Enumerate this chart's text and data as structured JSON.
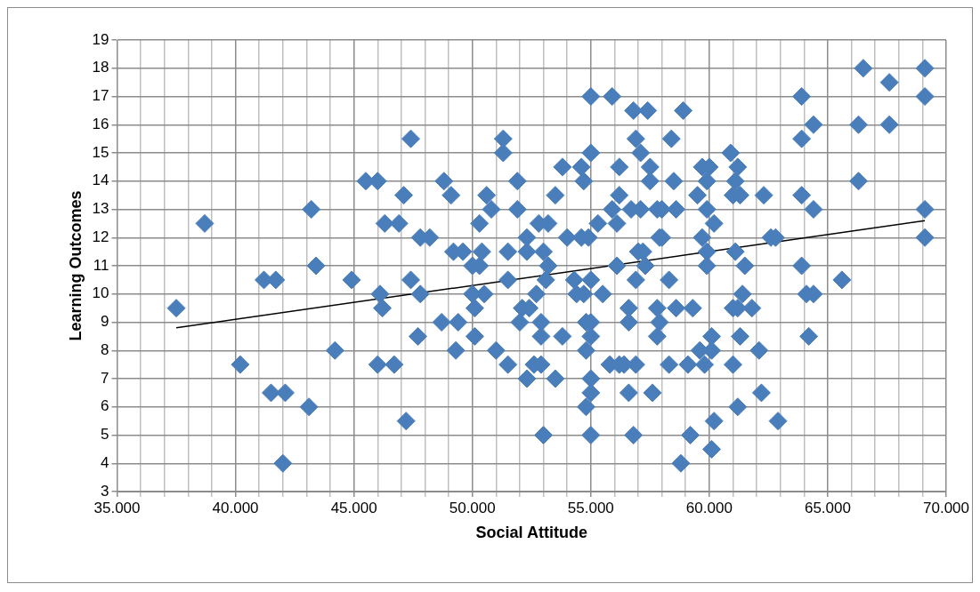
{
  "chart_data": {
    "type": "scatter",
    "xlabel": "Social Attitude",
    "ylabel": "Learning Outcomes",
    "xlim": [
      35,
      70
    ],
    "xticks": [
      {
        "value": 35,
        "label": "35.000"
      },
      {
        "value": 36,
        "label": null
      },
      {
        "value": 37,
        "label": null
      },
      {
        "value": 38,
        "label": null
      },
      {
        "value": 39,
        "label": null
      },
      {
        "value": 40,
        "label": "40.000"
      },
      {
        "value": 41,
        "label": null
      },
      {
        "value": 42,
        "label": null
      },
      {
        "value": 43,
        "label": null
      },
      {
        "value": 44,
        "label": null
      },
      {
        "value": 45,
        "label": "45.000"
      },
      {
        "value": 46,
        "label": null
      },
      {
        "value": 47,
        "label": null
      },
      {
        "value": 48,
        "label": null
      },
      {
        "value": 49,
        "label": null
      },
      {
        "value": 50,
        "label": "50.000"
      },
      {
        "value": 51,
        "label": null
      },
      {
        "value": 52,
        "label": null
      },
      {
        "value": 53,
        "label": null
      },
      {
        "value": 54,
        "label": null
      },
      {
        "value": 55,
        "label": "55.000"
      },
      {
        "value": 56,
        "label": null
      },
      {
        "value": 57,
        "label": null
      },
      {
        "value": 58,
        "label": null
      },
      {
        "value": 59,
        "label": null
      },
      {
        "value": 60,
        "label": "60.000"
      },
      {
        "value": 61,
        "label": null
      },
      {
        "value": 62,
        "label": null
      },
      {
        "value": 63,
        "label": null
      },
      {
        "value": 64,
        "label": null
      },
      {
        "value": 65,
        "label": "65.000"
      },
      {
        "value": 66,
        "label": null
      },
      {
        "value": 67,
        "label": null
      },
      {
        "value": 68,
        "label": null
      },
      {
        "value": 69,
        "label": null
      },
      {
        "value": 70,
        "label": "70.000"
      }
    ],
    "ylim": [
      3,
      19
    ],
    "yticks": [
      3,
      4,
      5,
      6,
      7,
      8,
      9,
      10,
      11,
      12,
      13,
      14,
      15,
      16,
      17,
      18,
      19
    ],
    "grid": true,
    "legend": false,
    "series": [
      {
        "type": "scatter",
        "marker": "diamond",
        "color": "#4a7ebb",
        "x": [
          37.5,
          38.7,
          40.2,
          41.2,
          41.7,
          41.5,
          42.1,
          42.0,
          43.1,
          43.2,
          43.4,
          44.2,
          44.9,
          45.5,
          46.0,
          46.1,
          46.2,
          46.3,
          46.0,
          46.7,
          46.9,
          47.1,
          47.2,
          47.4,
          47.4,
          47.7,
          47.8,
          47.8,
          48.2,
          48.7,
          48.8,
          49.1,
          49.2,
          49.3,
          49.4,
          49.6,
          50.0,
          50.0,
          50.1,
          50.1,
          50.3,
          50.3,
          50.4,
          50.5,
          50.6,
          50.8,
          51.0,
          51.3,
          51.3,
          51.5,
          51.5,
          51.5,
          51.9,
          51.9,
          52.0,
          52.1,
          52.3,
          52.3,
          52.3,
          52.4,
          52.6,
          52.7,
          52.8,
          52.9,
          52.9,
          52.9,
          53.0,
          53.0,
          53.1,
          53.2,
          53.2,
          53.5,
          53.5,
          53.8,
          53.8,
          54.0,
          54.3,
          54.4,
          54.6,
          54.6,
          54.7,
          54.7,
          54.8,
          54.8,
          54.8,
          54.9,
          55.0,
          55.0,
          55.0,
          55.0,
          55.0,
          55.0,
          55.0,
          55.0,
          55.3,
          55.5,
          55.8,
          55.9,
          55.9,
          56.1,
          56.1,
          56.2,
          56.2,
          56.2,
          56.4,
          56.6,
          56.6,
          56.6,
          56.7,
          56.8,
          56.8,
          56.9,
          56.9,
          56.9,
          57.0,
          57.1,
          57.1,
          57.2,
          57.3,
          57.4,
          57.5,
          57.5,
          57.6,
          57.8,
          57.8,
          57.8,
          57.9,
          57.9,
          58.0,
          58.0,
          58.3,
          58.3,
          58.4,
          58.5,
          58.6,
          58.6,
          58.8,
          58.9,
          59.1,
          59.3,
          59.2,
          59.5,
          59.6,
          59.7,
          59.7,
          59.8,
          59.9,
          59.9,
          59.9,
          59.9,
          60.0,
          60.1,
          60.1,
          60.2,
          60.2,
          60.1,
          60.9,
          61.0,
          61.0,
          61.0,
          61.1,
          61.1,
          61.2,
          61.2,
          61.2,
          61.3,
          61.3,
          61.4,
          61.5,
          61.8,
          62.1,
          62.2,
          62.3,
          62.6,
          62.8,
          62.9,
          63.9,
          63.9,
          63.9,
          63.9,
          64.1,
          64.2,
          64.4,
          64.4,
          64.4,
          65.6,
          66.3,
          66.3,
          66.5,
          67.6,
          67.6,
          69.1,
          69.1,
          69.1,
          69.1
        ],
        "values": [
          9.5,
          12.5,
          7.5,
          10.5,
          10.5,
          6.5,
          6.5,
          4.0,
          6.0,
          13.0,
          11.0,
          8.0,
          10.5,
          14.0,
          14.0,
          10.0,
          9.5,
          12.5,
          7.5,
          7.5,
          12.5,
          13.5,
          5.5,
          15.5,
          10.5,
          8.5,
          10.0,
          12.0,
          12.0,
          9.0,
          14.0,
          13.5,
          11.5,
          8.0,
          9.0,
          11.5,
          11.0,
          10.0,
          9.5,
          8.5,
          12.5,
          11.0,
          11.5,
          10.0,
          13.5,
          13.0,
          8.0,
          15.5,
          15.0,
          11.5,
          10.5,
          7.5,
          14.0,
          13.0,
          9.0,
          9.5,
          12.0,
          11.5,
          7.0,
          9.5,
          7.5,
          10.0,
          12.5,
          9.0,
          8.5,
          7.5,
          5.0,
          11.5,
          10.5,
          12.5,
          11.0,
          13.5,
          7.0,
          8.5,
          14.5,
          12.0,
          10.5,
          10.0,
          14.5,
          12.0,
          14.0,
          10.0,
          9.0,
          8.0,
          6.0,
          12.0,
          17.0,
          15.0,
          10.5,
          9.0,
          8.5,
          7.0,
          6.5,
          5.0,
          12.5,
          10.0,
          7.5,
          17.0,
          13.0,
          12.5,
          11.0,
          14.5,
          13.5,
          7.5,
          7.5,
          9.5,
          9.0,
          6.5,
          13.0,
          5.0,
          16.5,
          15.5,
          10.5,
          7.5,
          11.5,
          15.0,
          13.0,
          11.5,
          11.0,
          16.5,
          14.5,
          14.0,
          6.5,
          13.0,
          9.5,
          8.5,
          12.0,
          9.0,
          13.0,
          12.0,
          10.5,
          7.5,
          15.5,
          14.0,
          13.0,
          9.5,
          4.0,
          16.5,
          7.5,
          9.5,
          5.0,
          13.5,
          8.0,
          12.0,
          14.5,
          7.5,
          14.0,
          13.0,
          11.5,
          11.0,
          14.5,
          8.0,
          8.5,
          12.5,
          5.5,
          4.5,
          15.0,
          13.5,
          9.5,
          7.5,
          11.5,
          14.0,
          14.5,
          9.5,
          6.0,
          13.5,
          8.5,
          10.0,
          11.0,
          9.5,
          8.0,
          6.5,
          13.5,
          12.0,
          12.0,
          5.5,
          17.0,
          15.5,
          13.5,
          11.0,
          10.0,
          8.5,
          16.0,
          13.0,
          10.0,
          10.5,
          16.0,
          14.0,
          18.0,
          17.5,
          16.0,
          18.0,
          17.0,
          13.0,
          12.0
        ]
      },
      {
        "type": "line",
        "color": "#000000",
        "x": [
          37.5,
          69.1
        ],
        "values": [
          8.8,
          12.6
        ]
      }
    ]
  }
}
